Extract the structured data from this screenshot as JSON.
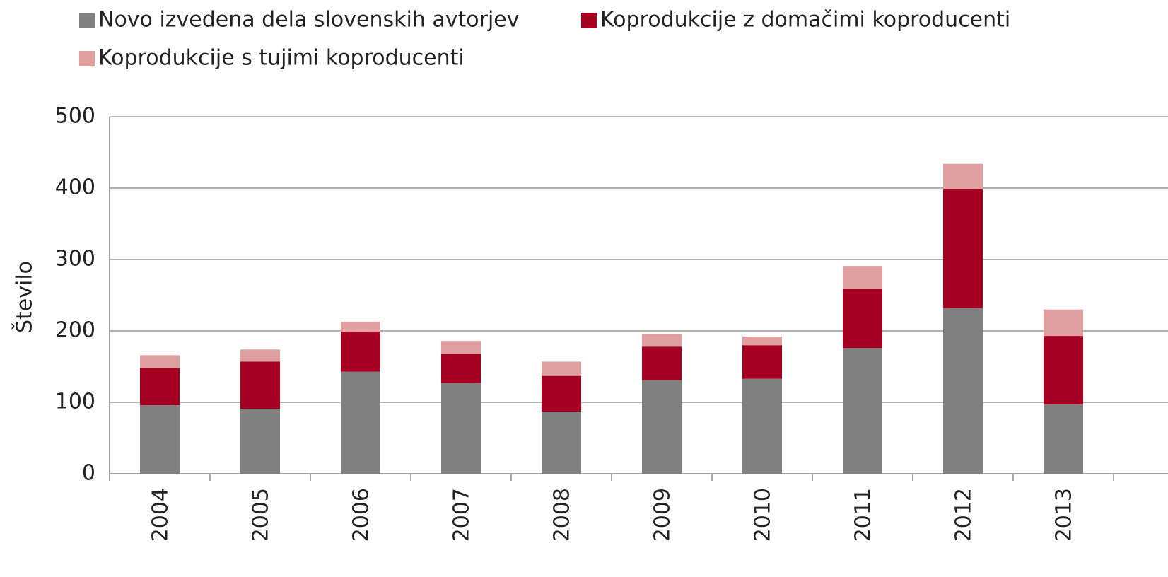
{
  "chart_data": {
    "type": "stacked-bar",
    "y_label": "Število",
    "categories": [
      "2004",
      "2005",
      "2006",
      "2007",
      "2008",
      "2009",
      "2010",
      "2011",
      "2012",
      "2013"
    ],
    "series": [
      {
        "name": "Novo izvedena dela slovenskih avtorjev",
        "color": "#808080",
        "values": [
          96,
          91,
          143,
          127,
          87,
          131,
          133,
          176,
          232,
          97
        ]
      },
      {
        "name": "Koprodukcije z domačimi koproducenti",
        "color": "#a50021",
        "values": [
          52,
          66,
          56,
          41,
          50,
          47,
          47,
          83,
          167,
          96
        ]
      },
      {
        "name": "Koprodukcije s tujimi koproducenti",
        "color": "#e0a0a0",
        "values": [
          18,
          17,
          14,
          18,
          20,
          18,
          12,
          32,
          35,
          37
        ]
      }
    ],
    "ylim": [
      0,
      500
    ],
    "yticks": [
      0,
      100,
      200,
      300,
      400,
      500
    ],
    "grid": true
  }
}
